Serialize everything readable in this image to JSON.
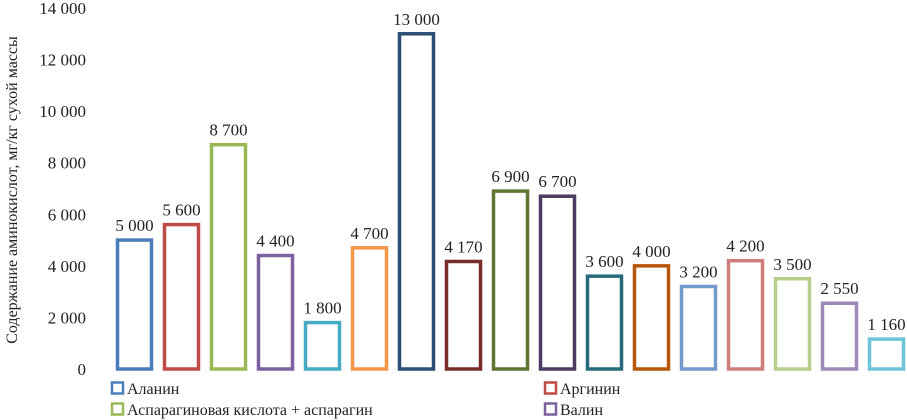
{
  "chart_data": {
    "type": "bar",
    "ylabel": "Содержание аминокислот, мг/кг сухой массы",
    "ylim": [
      0,
      14000
    ],
    "yticks": [
      0,
      2000,
      4000,
      6000,
      8000,
      10000,
      12000,
      14000
    ],
    "ytick_labels": [
      "0",
      "2 000",
      "4 000",
      "6 000",
      "8 000",
      "10 000",
      "12 000",
      "14 000"
    ],
    "grid": false,
    "legend_placement": "bottom",
    "series": [
      {
        "name": "Аланин",
        "value": 5000,
        "label": "5 000",
        "color": "#4a7ebb"
      },
      {
        "name": "Аргинин",
        "value": 5600,
        "label": "5 600",
        "color": "#be4b48"
      },
      {
        "name": "Аспарагиновая кислота + аспарагин",
        "value": 8700,
        "label": "8 700",
        "color": "#98b954"
      },
      {
        "name": "Валин",
        "value": 4400,
        "label": "4 400",
        "color": "#7d60a0"
      },
      {
        "name": "",
        "value": 1800,
        "label": "1 800",
        "color": "#46aac5"
      },
      {
        "name": "",
        "value": 4700,
        "label": "4 700",
        "color": "#f79646"
      },
      {
        "name": "",
        "value": 13000,
        "label": "13 000",
        "color": "#2c4d75"
      },
      {
        "name": "",
        "value": 4170,
        "label": "4 170",
        "color": "#772c2a"
      },
      {
        "name": "",
        "value": 6900,
        "label": "6 900",
        "color": "#5f7530"
      },
      {
        "name": "",
        "value": 6700,
        "label": "6 700",
        "color": "#4d3b62"
      },
      {
        "name": "",
        "value": 3600,
        "label": "3 600",
        "color": "#276a7c"
      },
      {
        "name": "",
        "value": 4000,
        "label": "4 000",
        "color": "#b65708"
      },
      {
        "name": "",
        "value": 3200,
        "label": "3 200",
        "color": "#729aca"
      },
      {
        "name": "",
        "value": 4200,
        "label": "4 200",
        "color": "#d07e7c"
      },
      {
        "name": "",
        "value": 3500,
        "label": "3 500",
        "color": "#b5cf8a"
      },
      {
        "name": "",
        "value": 2550,
        "label": "2 550",
        "color": "#9e89b8"
      },
      {
        "name": "",
        "value": 1160,
        "label": "1 160",
        "color": "#6dc4d8"
      }
    ],
    "legend": [
      {
        "name": "Аланин",
        "color": "#4a7ebb"
      },
      {
        "name": "Аргинин",
        "color": "#be4b48"
      },
      {
        "name": "Аспарагиновая кислота + аспарагин",
        "color": "#98b954"
      },
      {
        "name": "Валин",
        "color": "#7d60a0"
      }
    ]
  }
}
